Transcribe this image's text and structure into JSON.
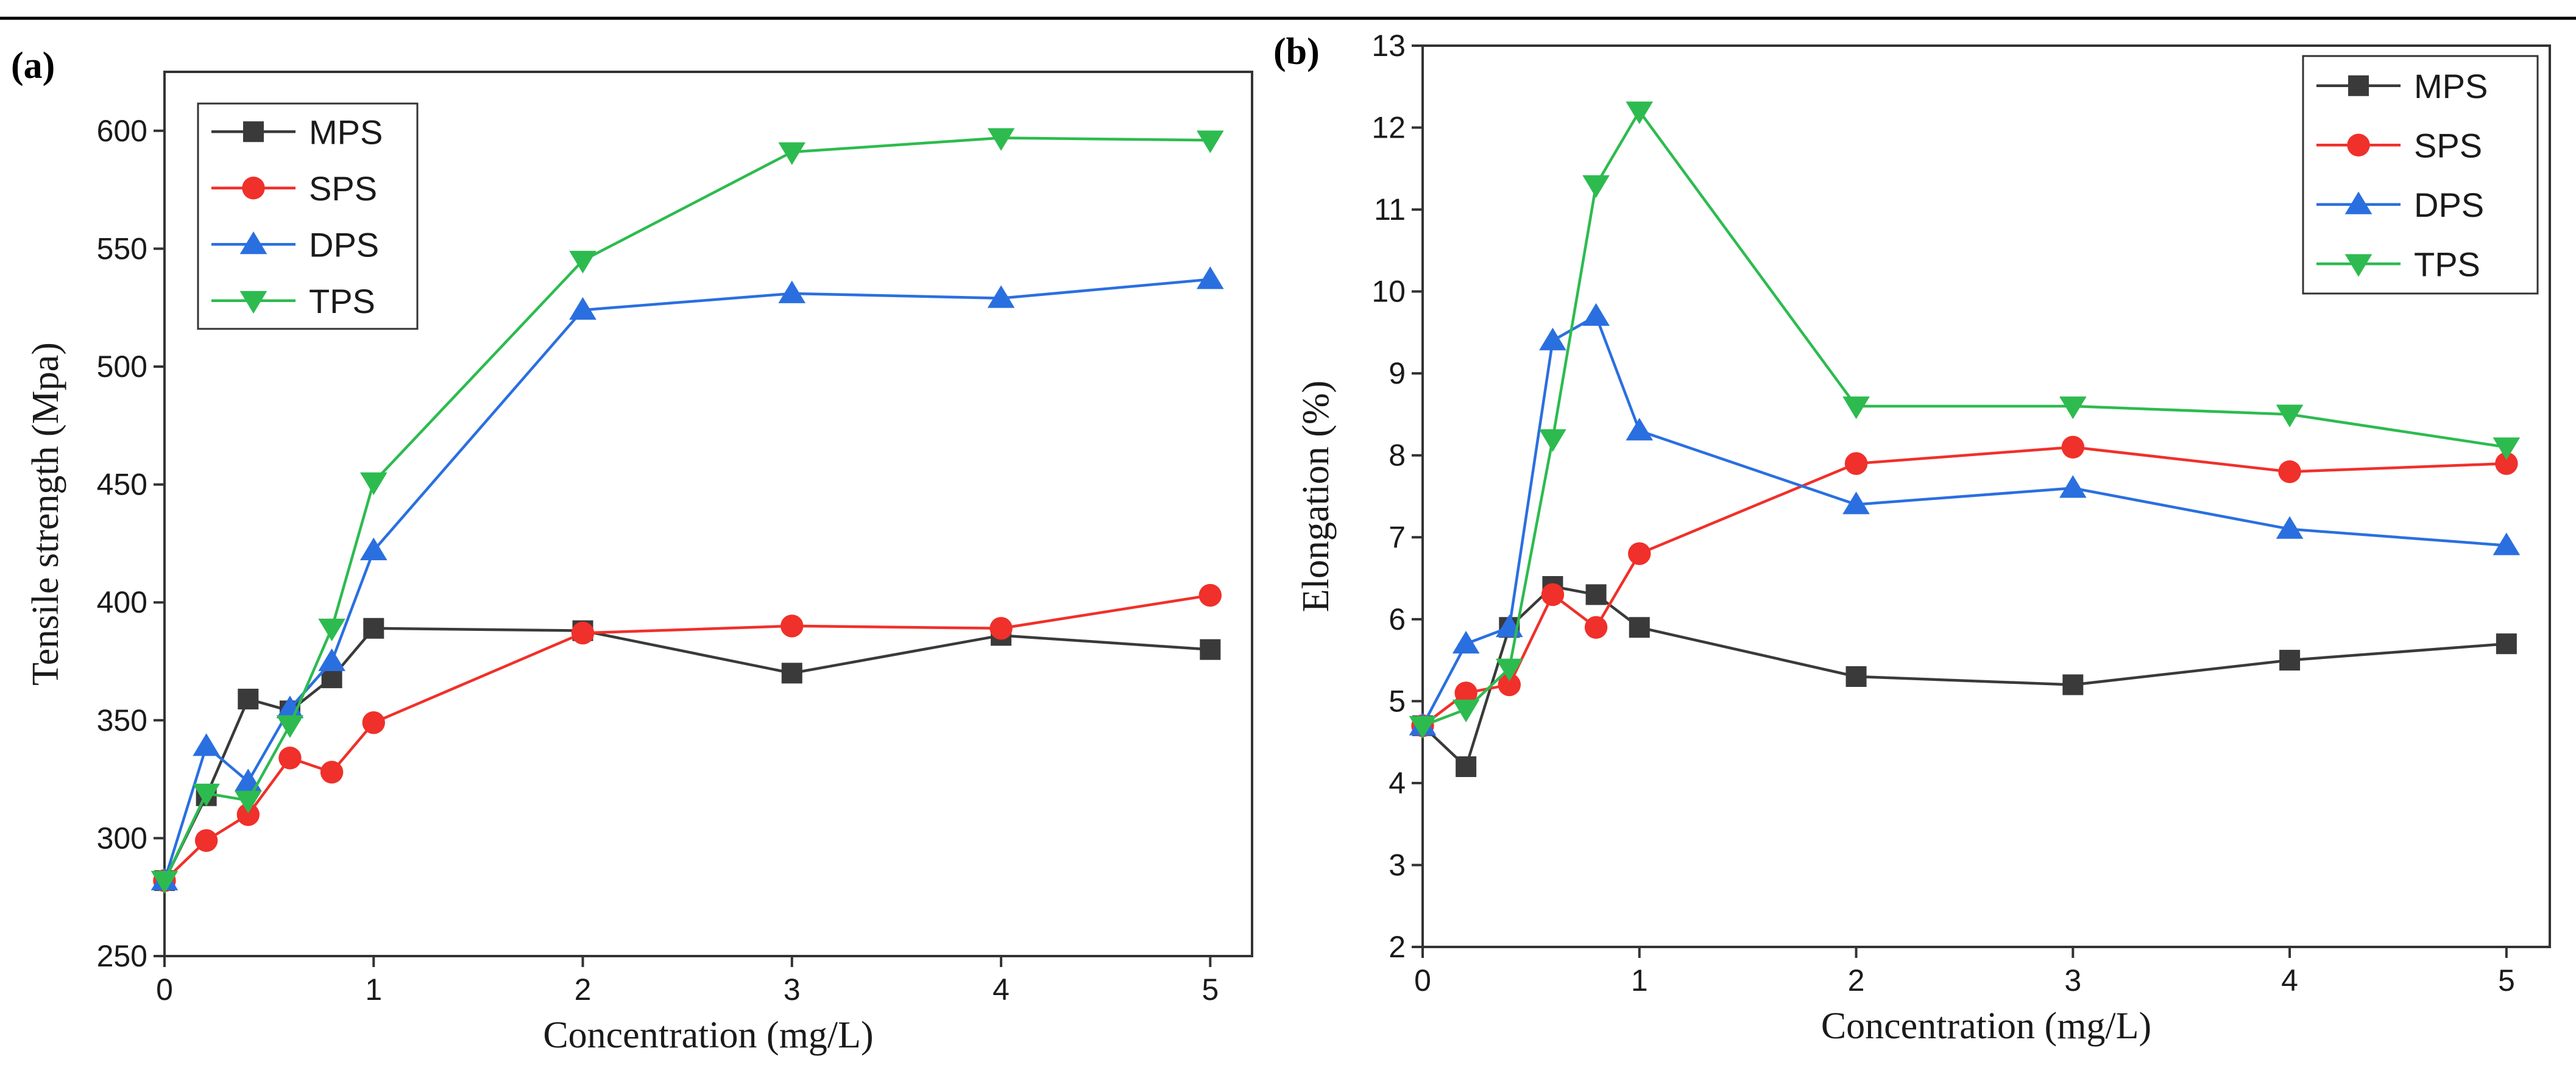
{
  "chart_data": [
    {
      "type": "line",
      "panel_label": "(a)",
      "title": "",
      "xlabel": "Concentration (mg/L)",
      "ylabel": "Tensile strength (Mpa)",
      "xlim": [
        0,
        5.2
      ],
      "ylim": [
        250,
        625
      ],
      "x_ticks": [
        0,
        1,
        2,
        3,
        4,
        5
      ],
      "y_ticks": [
        250,
        300,
        350,
        400,
        450,
        500,
        550,
        600
      ],
      "grid": false,
      "legend_position": "top-left",
      "x": [
        0,
        0.2,
        0.4,
        0.6,
        0.8,
        1,
        2,
        3,
        4,
        5
      ],
      "series": [
        {
          "name": "MPS",
          "color": "#3a3a3a",
          "marker": "square",
          "values": [
            282,
            318,
            359,
            354,
            368,
            389,
            388,
            370,
            386,
            380
          ]
        },
        {
          "name": "SPS",
          "color": "#f0302a",
          "marker": "circle",
          "values": [
            282,
            299,
            310,
            334,
            328,
            349,
            387,
            390,
            389,
            403
          ]
        },
        {
          "name": "DPS",
          "color": "#2a6fe0",
          "marker": "triangle-up",
          "values": [
            282,
            339,
            324,
            355,
            375,
            422,
            524,
            531,
            529,
            537
          ]
        },
        {
          "name": "TPS",
          "color": "#2dbb4f",
          "marker": "triangle-down",
          "values": [
            282,
            319,
            316,
            348,
            389,
            451,
            545,
            591,
            597,
            596
          ]
        }
      ]
    },
    {
      "type": "line",
      "panel_label": "(b)",
      "title": "",
      "xlabel": "Concentration (mg/L)",
      "ylabel": "Elongation  (%)",
      "xlim": [
        0,
        5.2
      ],
      "ylim": [
        2,
        13
      ],
      "x_ticks": [
        0,
        1,
        2,
        3,
        4,
        5
      ],
      "y_ticks": [
        2,
        3,
        4,
        5,
        6,
        7,
        8,
        9,
        10,
        11,
        12,
        13
      ],
      "grid": false,
      "legend_position": "top-right",
      "x": [
        0,
        0.2,
        0.4,
        0.6,
        0.8,
        1,
        2,
        3,
        4,
        5
      ],
      "series": [
        {
          "name": "MPS",
          "color": "#3a3a3a",
          "marker": "square",
          "values": [
            4.7,
            4.2,
            5.9,
            6.4,
            6.3,
            5.9,
            5.3,
            5.2,
            5.5,
            5.7
          ]
        },
        {
          "name": "SPS",
          "color": "#f0302a",
          "marker": "circle",
          "values": [
            4.7,
            5.1,
            5.2,
            6.3,
            5.9,
            6.8,
            7.9,
            8.1,
            7.8,
            7.9
          ]
        },
        {
          "name": "DPS",
          "color": "#2a6fe0",
          "marker": "triangle-up",
          "values": [
            4.7,
            5.7,
            5.9,
            9.4,
            9.7,
            8.3,
            7.4,
            7.6,
            7.1,
            6.9
          ]
        },
        {
          "name": "TPS",
          "color": "#2dbb4f",
          "marker": "triangle-down",
          "values": [
            4.7,
            4.9,
            5.4,
            8.2,
            11.3,
            12.2,
            8.6,
            8.6,
            8.5,
            8.1
          ]
        }
      ]
    }
  ]
}
